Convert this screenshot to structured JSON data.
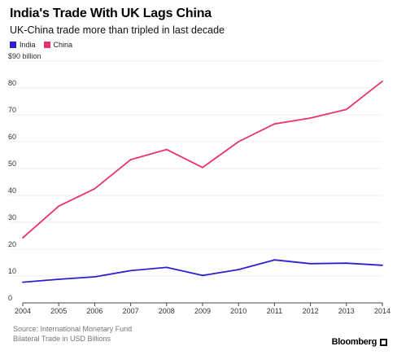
{
  "header": {
    "title": "India's Trade With UK Lags China",
    "subtitle": "UK-China trade more than tripled in last decade"
  },
  "colors": {
    "india": "#2f1fd0",
    "china": "#e8336e",
    "grid": "#eeeeee",
    "axis": "#444444"
  },
  "legend": [
    {
      "label": "India",
      "color": "#2f1fd0"
    },
    {
      "label": "China",
      "color": "#e8336e"
    }
  ],
  "chart_data": {
    "type": "line",
    "title": "India's Trade With UK Lags China",
    "subtitle": "UK-China trade more than tripled in last decade",
    "x": [
      "2004",
      "2005",
      "2006",
      "2007",
      "2008",
      "2009",
      "2010",
      "2011",
      "2012",
      "2013",
      "2014"
    ],
    "series": [
      {
        "name": "India",
        "values": [
          7.7,
          8.8,
          9.7,
          12.0,
          13.2,
          10.2,
          12.4,
          16.0,
          14.6,
          14.8,
          14.0
        ]
      },
      {
        "name": "China",
        "values": [
          24.2,
          36.0,
          42.5,
          53.3,
          57.1,
          50.4,
          60.0,
          66.6,
          68.8,
          72.0,
          82.5
        ]
      }
    ],
    "ylim": [
      0,
      90
    ],
    "yticks": [
      "0",
      "10",
      "20",
      "30",
      "40",
      "50",
      "60",
      "70",
      "80",
      "$90 billion"
    ],
    "xlabel": "",
    "ylabel": "",
    "grid": true,
    "legend_position": "top-left"
  },
  "footer": {
    "source": "Source: International Monetary Fund",
    "note": "Bilateral Trade in USD Billions",
    "brand": "Bloomberg"
  }
}
